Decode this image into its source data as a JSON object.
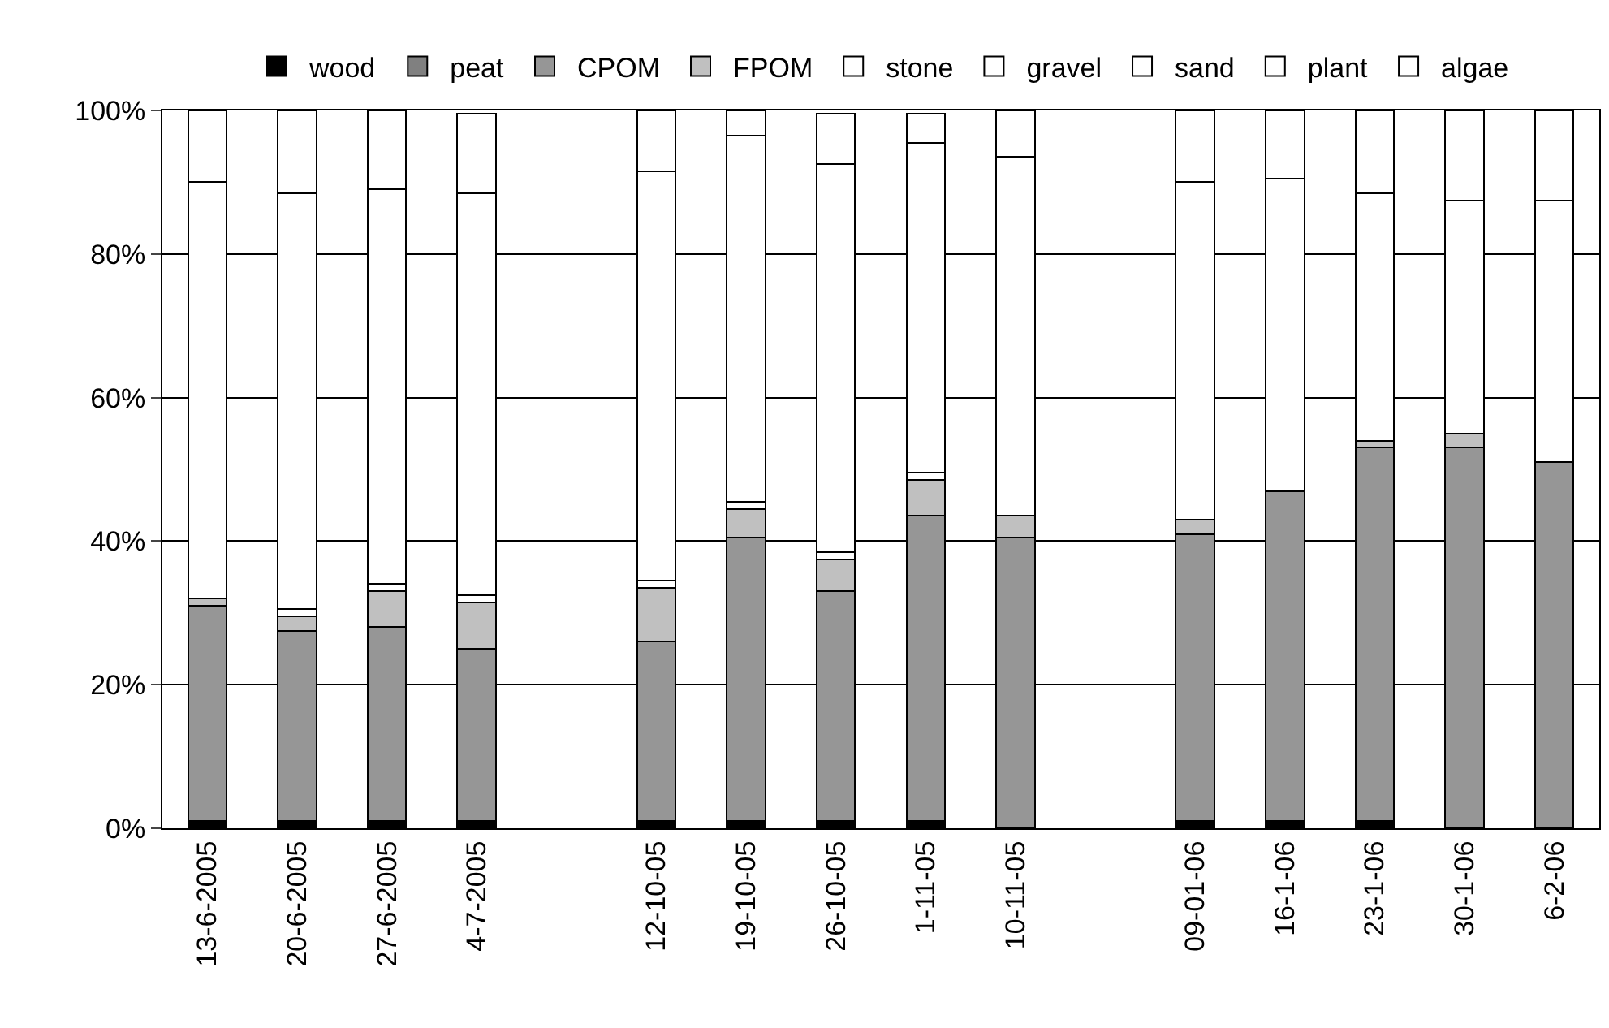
{
  "chart_data": {
    "type": "bar",
    "stacked": true,
    "categories": [
      "13-6-2005",
      "20-6-2005",
      "27-6-2005",
      "4-7-2005",
      null,
      "12-10-05",
      "19-10-05",
      "26-10-05",
      "1-11-05",
      "10-11-05",
      null,
      "09-01-06",
      "16-1-06",
      "23-1-06",
      "30-1-06",
      "6-2-06"
    ],
    "series": [
      {
        "name": "wood",
        "color": "#000000",
        "values": [
          1,
          1,
          1,
          1,
          0,
          1,
          1,
          1,
          1,
          0,
          0,
          1,
          1,
          1,
          0,
          0
        ]
      },
      {
        "name": "peat",
        "color": "#808080",
        "values": [
          0,
          0,
          0,
          0,
          0,
          0,
          0,
          0,
          0,
          0,
          0,
          0,
          0,
          0,
          0,
          0
        ]
      },
      {
        "name": "CPOM",
        "color": "#969696",
        "values": [
          30,
          26.5,
          27,
          24,
          0,
          25,
          39.5,
          32,
          42.5,
          40.5,
          0,
          40,
          46,
          52,
          53,
          51
        ]
      },
      {
        "name": "FPOM",
        "color": "#c0c0c0",
        "values": [
          1,
          2,
          5,
          6.5,
          0,
          7.5,
          4,
          4.5,
          5,
          3,
          0,
          2,
          0,
          1,
          2,
          0
        ]
      },
      {
        "name": "stone",
        "color": "#ffffff",
        "values": [
          0,
          1,
          1,
          1,
          0,
          1,
          1,
          1,
          1,
          0,
          0,
          0,
          0,
          0,
          0,
          0
        ]
      },
      {
        "name": "gravel",
        "color": "#ffffff",
        "values": [
          0,
          0,
          0,
          0,
          0,
          0,
          0,
          0,
          0,
          0,
          0,
          0,
          0,
          0,
          0,
          0
        ]
      },
      {
        "name": "sand",
        "color": "#ffffff",
        "values": [
          58,
          58,
          55,
          56,
          0,
          57,
          51,
          54,
          46,
          50,
          0,
          47,
          43.5,
          34.5,
          32.5,
          36.5
        ]
      },
      {
        "name": "plant",
        "color": "#ffffff",
        "values": [
          10,
          11.5,
          11,
          11,
          0,
          8.5,
          3.5,
          7,
          4,
          6.5,
          0,
          10,
          9.5,
          11.5,
          12.5,
          12.5
        ]
      },
      {
        "name": "algae",
        "color": "#ffffff",
        "values": [
          0,
          0,
          0,
          0,
          0,
          0,
          0,
          0,
          0,
          0,
          0,
          0,
          0,
          0,
          0,
          0
        ]
      }
    ],
    "ylim": [
      0,
      100
    ],
    "yticks": [
      {
        "value": 0,
        "label": "0%"
      },
      {
        "value": 20,
        "label": "20%"
      },
      {
        "value": 40,
        "label": "40%"
      },
      {
        "value": 60,
        "label": "60%"
      },
      {
        "value": 80,
        "label": "80%"
      },
      {
        "value": 100,
        "label": "100%"
      }
    ],
    "grid": "y",
    "legend": "top"
  }
}
